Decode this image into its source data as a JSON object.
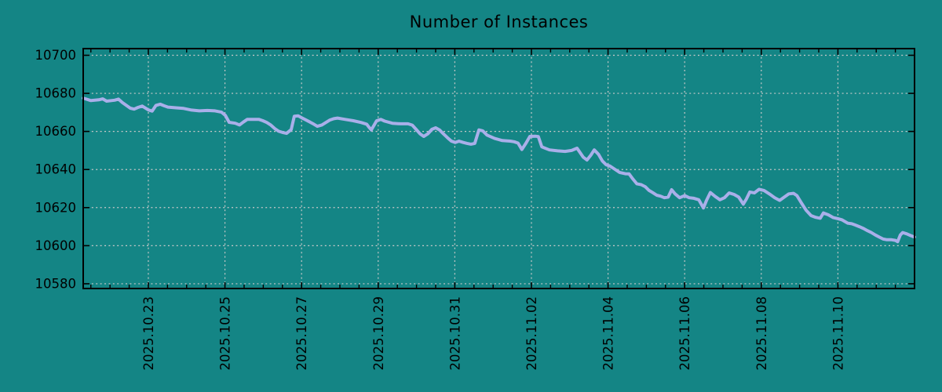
{
  "title": "Number of Instances",
  "colors": {
    "background": "#148585",
    "line": "#a9afe9",
    "grid": "#c9c9c9",
    "axis": "#000000",
    "text": "#000000"
  },
  "chart_data": {
    "type": "line",
    "title": "Number of Instances",
    "grid": true,
    "legend": false,
    "x_axis": {
      "unit": "days since 2025.10.23 00:00",
      "tick_labels": [
        "2025.10.23",
        "2025.10.25",
        "2025.10.27",
        "2025.10.29",
        "2025.10.31",
        "2025.11.02",
        "2025.11.04",
        "2025.11.06",
        "2025.11.08",
        "2025.11.10"
      ],
      "tick_positions_days": [
        0,
        2,
        4,
        6,
        8,
        10,
        12,
        14,
        16,
        18
      ],
      "minor_tick_interval_days": 0.5,
      "range_days": [
        -1.7,
        20.0
      ]
    },
    "y_axis": {
      "tick_labels": [
        "10580",
        "10600",
        "10620",
        "10640",
        "10660",
        "10680",
        "10700"
      ],
      "ticks": [
        10580,
        10600,
        10620,
        10640,
        10660,
        10680,
        10700
      ],
      "range": [
        10577.5,
        10703.5
      ]
    },
    "series": [
      {
        "name": "instances",
        "points": [
          [
            -1.7,
            10677.5
          ],
          [
            -1.5,
            10676.2
          ],
          [
            -1.29,
            10676.6
          ],
          [
            -1.19,
            10677.1
          ],
          [
            -1.09,
            10675.9
          ],
          [
            -0.88,
            10676.4
          ],
          [
            -0.78,
            10677.0
          ],
          [
            -0.68,
            10675.2
          ],
          [
            -0.47,
            10672.2
          ],
          [
            -0.37,
            10671.7
          ],
          [
            -0.27,
            10672.6
          ],
          [
            -0.16,
            10673.3
          ],
          [
            -0.06,
            10672.1
          ],
          [
            0.0,
            10671.3
          ],
          [
            0.1,
            10670.7
          ],
          [
            0.2,
            10673.7
          ],
          [
            0.31,
            10674.3
          ],
          [
            0.41,
            10673.5
          ],
          [
            0.51,
            10672.8
          ],
          [
            0.72,
            10672.4
          ],
          [
            0.92,
            10672.1
          ],
          [
            1.13,
            10671.2
          ],
          [
            1.33,
            10670.8
          ],
          [
            1.54,
            10671.0
          ],
          [
            1.74,
            10670.8
          ],
          [
            1.91,
            10670.1
          ],
          [
            2.01,
            10668.4
          ],
          [
            2.11,
            10664.8
          ],
          [
            2.27,
            10664.3
          ],
          [
            2.38,
            10663.4
          ],
          [
            2.48,
            10664.9
          ],
          [
            2.58,
            10666.3
          ],
          [
            2.89,
            10666.3
          ],
          [
            2.99,
            10665.6
          ],
          [
            3.09,
            10664.7
          ],
          [
            3.2,
            10663.3
          ],
          [
            3.3,
            10661.5
          ],
          [
            3.4,
            10660.1
          ],
          [
            3.5,
            10659.5
          ],
          [
            3.61,
            10659.0
          ],
          [
            3.73,
            10661.0
          ],
          [
            3.81,
            10668.0
          ],
          [
            3.91,
            10668.2
          ],
          [
            4.02,
            10667.0
          ],
          [
            4.22,
            10664.9
          ],
          [
            4.32,
            10663.8
          ],
          [
            4.41,
            10662.7
          ],
          [
            4.53,
            10663.4
          ],
          [
            4.73,
            10665.9
          ],
          [
            4.84,
            10666.7
          ],
          [
            4.94,
            10667.0
          ],
          [
            5.14,
            10666.3
          ],
          [
            5.35,
            10665.6
          ],
          [
            5.55,
            10664.7
          ],
          [
            5.7,
            10663.8
          ],
          [
            5.76,
            10662.2
          ],
          [
            5.82,
            10660.8
          ],
          [
            5.96,
            10665.6
          ],
          [
            6.07,
            10666.3
          ],
          [
            6.17,
            10665.4
          ],
          [
            6.37,
            10664.3
          ],
          [
            6.58,
            10664.0
          ],
          [
            6.78,
            10664.0
          ],
          [
            6.89,
            10663.3
          ],
          [
            6.99,
            10661.1
          ],
          [
            7.09,
            10658.8
          ],
          [
            7.19,
            10657.4
          ],
          [
            7.3,
            10658.8
          ],
          [
            7.4,
            10661.1
          ],
          [
            7.5,
            10661.9
          ],
          [
            7.6,
            10660.8
          ],
          [
            7.7,
            10658.8
          ],
          [
            7.81,
            10656.7
          ],
          [
            7.91,
            10654.9
          ],
          [
            8.01,
            10654.2
          ],
          [
            8.11,
            10654.9
          ],
          [
            8.22,
            10654.2
          ],
          [
            8.32,
            10653.7
          ],
          [
            8.42,
            10653.3
          ],
          [
            8.52,
            10653.7
          ],
          [
            8.63,
            10660.8
          ],
          [
            8.73,
            10660.3
          ],
          [
            8.84,
            10658.1
          ],
          [
            9.04,
            10656.3
          ],
          [
            9.24,
            10655.2
          ],
          [
            9.45,
            10654.9
          ],
          [
            9.55,
            10654.6
          ],
          [
            9.65,
            10653.9
          ],
          [
            9.75,
            10650.5
          ],
          [
            9.86,
            10653.9
          ],
          [
            9.96,
            10657.4
          ],
          [
            10.1,
            10657.5
          ],
          [
            10.18,
            10657.3
          ],
          [
            10.27,
            10651.9
          ],
          [
            10.47,
            10650.3
          ],
          [
            10.68,
            10649.8
          ],
          [
            10.88,
            10649.5
          ],
          [
            11.05,
            10650.0
          ],
          [
            11.19,
            10651.2
          ],
          [
            11.35,
            10646.5
          ],
          [
            11.45,
            10645.0
          ],
          [
            11.55,
            10647.5
          ],
          [
            11.64,
            10650.3
          ],
          [
            11.75,
            10648.0
          ],
          [
            11.85,
            10644.5
          ],
          [
            11.95,
            10642.5
          ],
          [
            12.05,
            10641.8
          ],
          [
            12.15,
            10640.5
          ],
          [
            12.3,
            10638.5
          ],
          [
            12.45,
            10637.8
          ],
          [
            12.55,
            10637.7
          ],
          [
            12.65,
            10635.0
          ],
          [
            12.75,
            10632.5
          ],
          [
            12.87,
            10632.0
          ],
          [
            12.97,
            10631.0
          ],
          [
            13.07,
            10629.0
          ],
          [
            13.17,
            10627.8
          ],
          [
            13.27,
            10626.5
          ],
          [
            13.37,
            10626.0
          ],
          [
            13.47,
            10625.2
          ],
          [
            13.57,
            10625.5
          ],
          [
            13.66,
            10629.4
          ],
          [
            13.75,
            10627.2
          ],
          [
            13.87,
            10625.2
          ],
          [
            14.0,
            10626.3
          ],
          [
            14.12,
            10625.2
          ],
          [
            14.24,
            10624.9
          ],
          [
            14.37,
            10624.1
          ],
          [
            14.49,
            10619.8
          ],
          [
            14.57,
            10623.8
          ],
          [
            14.67,
            10627.9
          ],
          [
            14.8,
            10625.8
          ],
          [
            14.92,
            10624.1
          ],
          [
            15.04,
            10625.2
          ],
          [
            15.16,
            10627.7
          ],
          [
            15.29,
            10626.9
          ],
          [
            15.41,
            10625.5
          ],
          [
            15.53,
            10621.8
          ],
          [
            15.61,
            10624.5
          ],
          [
            15.7,
            10628.2
          ],
          [
            15.82,
            10627.7
          ],
          [
            15.94,
            10629.6
          ],
          [
            16.07,
            10629.0
          ],
          [
            16.21,
            10627.2
          ],
          [
            16.35,
            10625.2
          ],
          [
            16.48,
            10623.8
          ],
          [
            16.6,
            10625.5
          ],
          [
            16.72,
            10627.2
          ],
          [
            16.84,
            10627.5
          ],
          [
            16.93,
            10626.3
          ],
          [
            17.05,
            10622.4
          ],
          [
            17.17,
            10618.6
          ],
          [
            17.3,
            10615.8
          ],
          [
            17.42,
            10614.9
          ],
          [
            17.54,
            10614.4
          ],
          [
            17.62,
            10617.2
          ],
          [
            17.75,
            10616.2
          ],
          [
            17.87,
            10614.8
          ],
          [
            18.0,
            10614.2
          ],
          [
            18.1,
            10613.6
          ],
          [
            18.26,
            10611.8
          ],
          [
            18.36,
            10611.5
          ],
          [
            18.46,
            10610.8
          ],
          [
            18.56,
            10610.0
          ],
          [
            18.67,
            10609.0
          ],
          [
            18.77,
            10607.9
          ],
          [
            18.87,
            10606.9
          ],
          [
            18.98,
            10605.6
          ],
          [
            19.08,
            10604.5
          ],
          [
            19.18,
            10603.5
          ],
          [
            19.28,
            10603.1
          ],
          [
            19.4,
            10603.1
          ],
          [
            19.5,
            10602.8
          ],
          [
            19.56,
            10602.1
          ],
          [
            19.63,
            10605.6
          ],
          [
            19.69,
            10606.9
          ],
          [
            19.8,
            10606.2
          ],
          [
            19.9,
            10605.3
          ],
          [
            20.0,
            10604.5
          ]
        ]
      }
    ]
  }
}
